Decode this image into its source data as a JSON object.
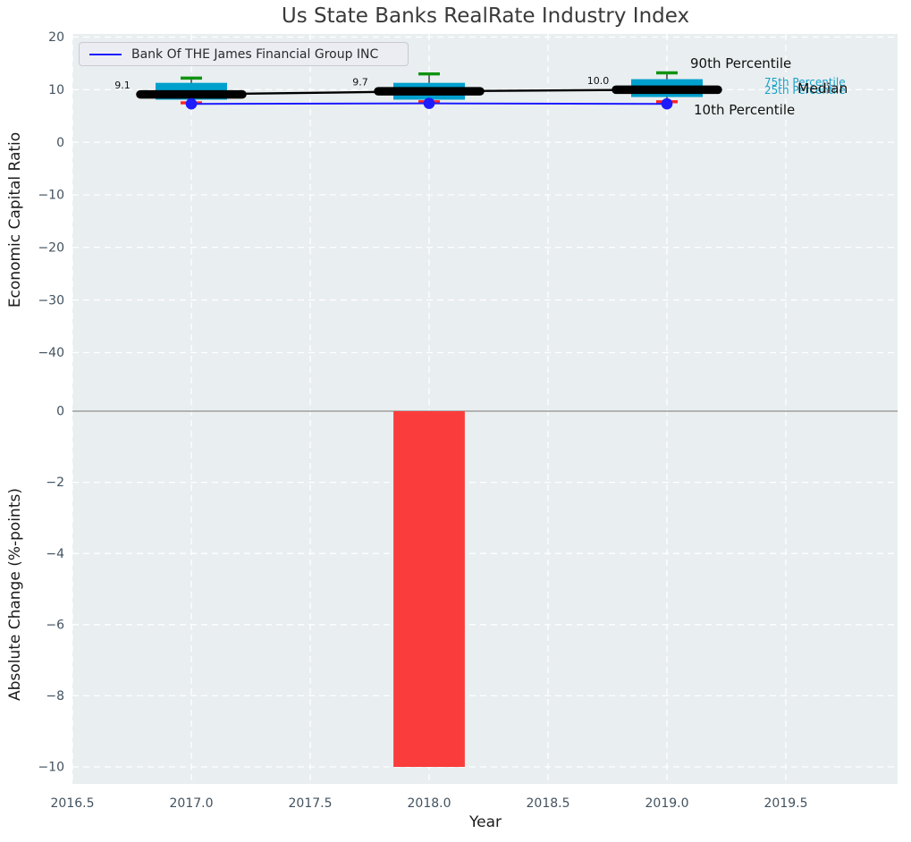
{
  "figure": {
    "title": "Us State Banks RealRate Industry Index",
    "background": "#ffffff",
    "plot_background": "#e9eef0",
    "grid_color": "#ffffff",
    "tick_color": "#42525f",
    "axis_label_color": "#1c1c1c",
    "title_color": "#3a3a3a"
  },
  "legend": {
    "label": "Bank Of THE James Financial Group INC",
    "line_color": "#1c1cff",
    "position": "upper left"
  },
  "annotations": {
    "p90": "90th Percentile",
    "p75": "75th Percentile",
    "p25": "25th Percentile",
    "median": "Median",
    "p10": "10th Percentile"
  },
  "chart_data": [
    {
      "type": "line",
      "subtype": "industry percentile band chart",
      "title": "Us State Banks RealRate Industry Index",
      "ylabel": "Economic Capital Ratio",
      "x": [
        2017,
        2018,
        2019
      ],
      "series": [
        {
          "name": "90th Percentile",
          "values": [
            12.2,
            13.0,
            13.2
          ],
          "color": "#0f930f",
          "style": "whisker-cap"
        },
        {
          "name": "75th Percentile",
          "values": [
            11.3,
            11.3,
            12.0
          ],
          "color": "#00a0cd",
          "style": "box-top"
        },
        {
          "name": "Median",
          "values": [
            9.1,
            9.7,
            10.0
          ],
          "color": "#000000",
          "style": "thick-line"
        },
        {
          "name": "25th Percentile",
          "values": [
            8.1,
            8.1,
            8.6
          ],
          "color": "#00a0cd",
          "style": "box-bottom"
        },
        {
          "name": "10th Percentile",
          "values": [
            7.5,
            7.7,
            7.7
          ],
          "color": "#ff2222",
          "style": "whisker-cap"
        },
        {
          "name": "Bank Of THE James Financial Group INC",
          "values": [
            7.3,
            7.4,
            7.3
          ],
          "color": "#1c1cff",
          "style": "line-markers"
        }
      ],
      "median_labels": [
        "9.1",
        "9.7",
        "10.0"
      ],
      "yticks": {
        "values": [
          20,
          10,
          0,
          -10,
          -20,
          -30,
          -40
        ],
        "labels": [
          "20",
          "10",
          "0",
          "−10",
          "−20",
          "−30",
          "−40"
        ]
      },
      "xticks": {
        "values": [
          2016.5,
          2017,
          2017.5,
          2018,
          2018.5,
          2019,
          2019.5
        ],
        "labels": [
          "2016.5",
          "2017.0",
          "2017.5",
          "2018.0",
          "2018.5",
          "2019.0",
          "2019.5"
        ]
      },
      "ylim": [
        -51,
        20.6
      ],
      "xlim": [
        2016.5,
        2019.97
      ],
      "grid": true,
      "legend_position": "upper left"
    },
    {
      "type": "bar",
      "ylabel": "Absolute Change (%-points)",
      "xlabel": "Year",
      "x": [
        2018
      ],
      "values": [
        -10.0
      ],
      "bar_color": "#fa3c3c",
      "bar_width_years": 0.3,
      "yticks": {
        "values": [
          0,
          -2,
          -4,
          -6,
          -8,
          -10
        ],
        "labels": [
          "0",
          "−2",
          "−4",
          "−6",
          "−8",
          "−10"
        ]
      },
      "ylim": [
        -10.5,
        0.03
      ],
      "xlim": [
        2016.5,
        2019.97
      ],
      "zero_line_color": "#a9a9a9",
      "grid": true
    }
  ]
}
